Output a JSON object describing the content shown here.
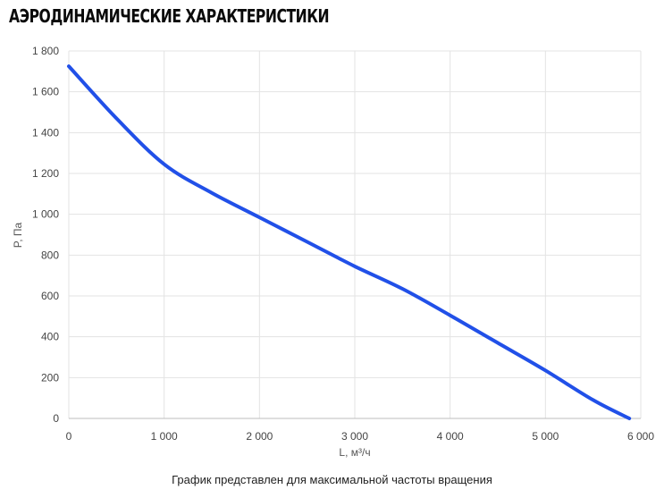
{
  "header": {
    "title": "Аэродинамические характеристики"
  },
  "footnote": "График представлен для максимальной частоты вращения",
  "chart_data": {
    "type": "line",
    "title": "",
    "xlabel": "L, м³/ч",
    "ylabel": "P, Па",
    "xlim": [
      0,
      6000
    ],
    "ylim": [
      0,
      1800
    ],
    "x_ticks": [
      "0",
      "1 000",
      "2 000",
      "3 000",
      "4 000",
      "5 000",
      "6 000"
    ],
    "y_ticks": [
      "0",
      "200",
      "400",
      "600",
      "800",
      "1 000",
      "1 200",
      "1 400",
      "1 600",
      "1 800"
    ],
    "grid": true,
    "series": [
      {
        "color": "#2150e8",
        "x": [
          0,
          500,
          1000,
          1500,
          2000,
          2500,
          3000,
          3500,
          4000,
          4500,
          5000,
          5500,
          5880
        ],
        "y": [
          1725,
          1470,
          1245,
          1105,
          985,
          865,
          745,
          635,
          505,
          370,
          235,
          90,
          0
        ]
      }
    ]
  }
}
